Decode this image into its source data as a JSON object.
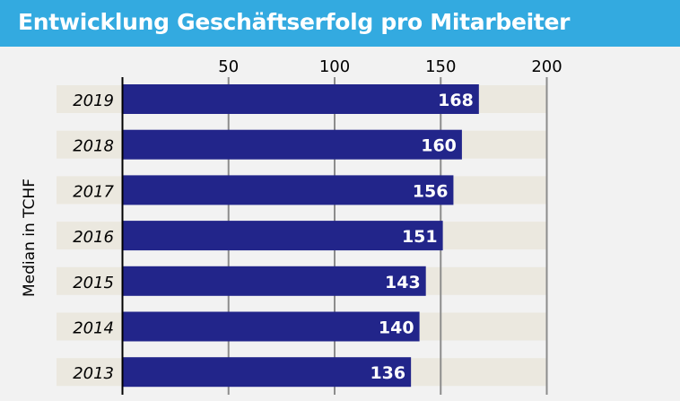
{
  "chart_data": {
    "type": "bar",
    "orientation": "horizontal",
    "title": "Entwicklung Geschäftserfolg pro Mitarbeiter",
    "ylabel": "Median in TCHF",
    "xlabel": "",
    "categories": [
      "2019",
      "2018",
      "2017",
      "2016",
      "2015",
      "2014",
      "2013"
    ],
    "values": [
      168,
      160,
      156,
      151,
      143,
      140,
      136
    ],
    "xlim": [
      0,
      200
    ],
    "xticks": [
      50,
      100,
      150,
      200
    ],
    "grid": true,
    "colors": {
      "bar": "#22258a",
      "band": "#ebe8df",
      "title_bg": "#33aae0",
      "background": "#f2f2f2",
      "grid": "#8c8c8c"
    }
  }
}
